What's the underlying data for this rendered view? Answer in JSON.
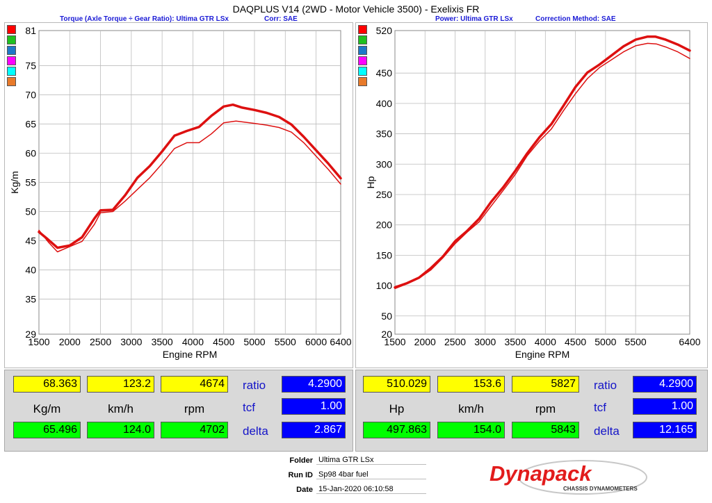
{
  "header": {
    "title": "DAQPLUS V14 (2WD - Motor Vehicle 3500) - Exelixis FR",
    "left_subtitle_a": "Torque (Axle Torque ÷ Gear Ratio): Ultima GTR LSx",
    "left_subtitle_b": "Corr: SAE",
    "right_subtitle_a": "Power: Ultima GTR LSx",
    "right_subtitle_b": "Correction Method: SAE"
  },
  "swatch_colors": [
    "#ff0000",
    "#1fc11f",
    "#1f78c8",
    "#ff00ff",
    "#00ffff",
    "#e87a2a"
  ],
  "chart_data": [
    {
      "type": "line",
      "name": "torque",
      "xlabel": "Engine RPM",
      "ylabel": "Kg/m",
      "xlim": [
        1500,
        6400
      ],
      "ylim": [
        29,
        81
      ],
      "x_ticks": [
        1500,
        2000,
        2500,
        3000,
        3500,
        4000,
        4500,
        5000,
        5500,
        6000,
        6400
      ],
      "x_tick_labels": [
        "1500",
        "2000",
        "2500",
        "3000",
        "3500",
        "4000",
        "4500",
        "5000",
        "5500",
        "6000",
        "6400"
      ],
      "y_ticks": [
        29,
        35,
        40,
        45,
        50,
        55,
        60,
        65,
        70,
        75,
        81
      ],
      "y_tick_labels": [
        "29",
        "35",
        "40",
        "45",
        "50",
        "55",
        "60",
        "65",
        "70",
        "75",
        "81"
      ],
      "grid": true,
      "series": [
        {
          "color": "#dd1010",
          "width": 3.5,
          "x": [
            1500,
            1650,
            1800,
            2000,
            2200,
            2400,
            2500,
            2700,
            2900,
            3100,
            3300,
            3500,
            3700,
            3900,
            4100,
            4300,
            4500,
            4650,
            4800,
            5000,
            5200,
            5400,
            5600,
            5800,
            6000,
            6200,
            6400
          ],
          "y": [
            46.5,
            45.2,
            43.8,
            44.2,
            45.6,
            48.8,
            50.2,
            50.3,
            52.8,
            55.8,
            57.8,
            60.3,
            63.0,
            63.8,
            64.5,
            66.4,
            68.0,
            68.3,
            67.8,
            67.4,
            66.9,
            66.2,
            64.9,
            62.8,
            60.5,
            58.2,
            55.7
          ]
        },
        {
          "color": "#dd1010",
          "width": 1.5,
          "x": [
            1500,
            1650,
            1800,
            2000,
            2200,
            2400,
            2500,
            2700,
            2900,
            3100,
            3300,
            3500,
            3700,
            3900,
            4100,
            4300,
            4500,
            4700,
            5000,
            5200,
            5400,
            5600,
            5800,
            6000,
            6200,
            6400
          ],
          "y": [
            46.8,
            44.8,
            43.1,
            44.0,
            44.9,
            47.8,
            49.8,
            50.0,
            51.8,
            53.8,
            55.8,
            58.2,
            60.8,
            61.8,
            61.8,
            63.3,
            65.2,
            65.5,
            65.1,
            64.8,
            64.4,
            63.6,
            61.8,
            59.5,
            57.2,
            54.7
          ]
        }
      ]
    },
    {
      "type": "line",
      "name": "power",
      "xlabel": "Engine RPM",
      "ylabel": "Hp",
      "xlim": [
        1500,
        6400
      ],
      "ylim": [
        20,
        520
      ],
      "x_ticks": [
        1500,
        2000,
        2500,
        3000,
        3500,
        4000,
        4500,
        5000,
        5500,
        6400
      ],
      "x_tick_labels": [
        "1500",
        "2000",
        "2500",
        "3000",
        "3500",
        "4000",
        "4500",
        "5000",
        "5500",
        "6400"
      ],
      "y_ticks": [
        20,
        50,
        100,
        150,
        200,
        250,
        300,
        350,
        400,
        450,
        520
      ],
      "y_tick_labels": [
        "20",
        "50",
        "100",
        "150",
        "200",
        "250",
        "300",
        "350",
        "400",
        "450",
        "520"
      ],
      "grid": true,
      "series": [
        {
          "color": "#dd1010",
          "width": 3.5,
          "x": [
            1500,
            1700,
            1900,
            2100,
            2300,
            2500,
            2700,
            2900,
            3100,
            3300,
            3500,
            3700,
            3900,
            4100,
            4300,
            4500,
            4700,
            4900,
            5100,
            5300,
            5500,
            5700,
            5827,
            6000,
            6200,
            6400
          ],
          "y": [
            97,
            104,
            113,
            129,
            148,
            173,
            190,
            210,
            238,
            262,
            289,
            318,
            344,
            366,
            396,
            427,
            451,
            464,
            479,
            494,
            505,
            510,
            510,
            505,
            497,
            487
          ]
        },
        {
          "color": "#dd1010",
          "width": 1.5,
          "x": [
            1500,
            1700,
            1900,
            2100,
            2300,
            2500,
            2700,
            2900,
            3100,
            3300,
            3500,
            3700,
            3900,
            4100,
            4300,
            4500,
            4700,
            4900,
            5100,
            5300,
            5500,
            5700,
            5843,
            6000,
            6200,
            6400
          ],
          "y": [
            95,
            103,
            112,
            126,
            146,
            169,
            188,
            205,
            231,
            257,
            283,
            314,
            338,
            358,
            388,
            416,
            441,
            459,
            472,
            485,
            495,
            499,
            498,
            493,
            485,
            474
          ]
        }
      ]
    }
  ],
  "left_readout": {
    "max_value": "68.363",
    "max_speed": "123.2",
    "max_rpm": "4674",
    "unit_value": "Kg/m",
    "unit_speed": "km/h",
    "unit_rpm": "rpm",
    "min_value": "65.496",
    "min_speed": "124.0",
    "min_rpm": "4702",
    "ratio_label": "ratio",
    "ratio_value": "4.2900",
    "tcf_label": "tcf",
    "tcf_value": "1.00",
    "delta_label": "delta",
    "delta_value": "2.867"
  },
  "right_readout": {
    "max_value": "510.029",
    "max_speed": "153.6",
    "max_rpm": "5827",
    "unit_value": "Hp",
    "unit_speed": "km/h",
    "unit_rpm": "rpm",
    "min_value": "497.863",
    "min_speed": "154.0",
    "min_rpm": "5843",
    "ratio_label": "ratio",
    "ratio_value": "4.2900",
    "tcf_label": "tcf",
    "tcf_value": "1.00",
    "delta_label": "delta",
    "delta_value": "12.165"
  },
  "info": {
    "folder_label": "Folder",
    "folder_value": "Ultima GTR LSx",
    "runid_label": "Run ID",
    "runid_value": "Sp98 4bar fuel",
    "date_label": "Date",
    "date_value": "15-Jan-2020 06:10:58"
  },
  "logo": {
    "brand": "Dynapack",
    "tagline": "CHASSIS DYNAMOMETERS"
  }
}
